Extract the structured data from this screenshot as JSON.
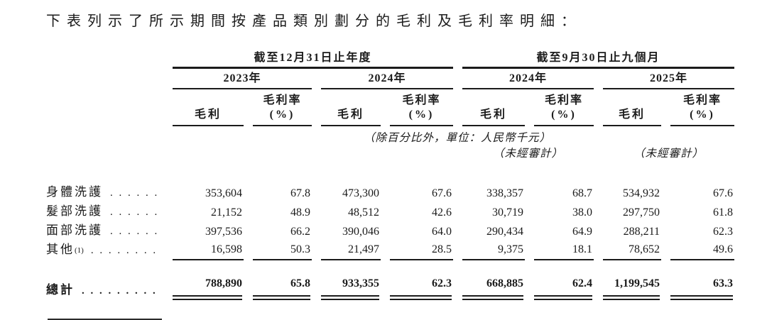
{
  "intro": "下表列示了所示期間按產品類別劃分的毛利及毛利率明細：",
  "table": {
    "group_headers": [
      "截至12月31日止年度",
      "截至9月30日止九個月"
    ],
    "year_headers": [
      "2023年",
      "2024年",
      "2024年",
      "2025年"
    ],
    "subheader": {
      "gross_profit": "毛利",
      "margin_line1": "毛利率",
      "margin_line2": "(%)"
    },
    "notes": {
      "unit": "（除百分比外，單位：人民幣千元）",
      "unaudited": "（未經審計）"
    },
    "rows": [
      {
        "label": "身體洗護",
        "dots": ". . . . . .",
        "values": [
          "353,604",
          "67.8",
          "473,300",
          "67.6",
          "338,357",
          "68.7",
          "534,932",
          "67.6"
        ]
      },
      {
        "label": "髮部洗護",
        "dots": ". . . . . .",
        "values": [
          "21,152",
          "48.9",
          "48,512",
          "42.6",
          "30,719",
          "38.0",
          "297,750",
          "61.8"
        ]
      },
      {
        "label": "面部洗護",
        "dots": ". . . . . .",
        "values": [
          "397,536",
          "66.2",
          "390,046",
          "64.0",
          "290,434",
          "64.9",
          "288,211",
          "62.3"
        ]
      },
      {
        "label": "其他",
        "sup": "(1)",
        "dots": ". . . . . . . .",
        "values": [
          "16,598",
          "50.3",
          "21,497",
          "28.5",
          "9,375",
          "18.1",
          "78,652",
          "49.6"
        ]
      }
    ],
    "total": {
      "label": "總計",
      "dots": ". . . . . . . . .",
      "values": [
        "788,890",
        "65.8",
        "933,355",
        "62.3",
        "668,885",
        "62.4",
        "1,199,545",
        "63.3"
      ]
    }
  }
}
